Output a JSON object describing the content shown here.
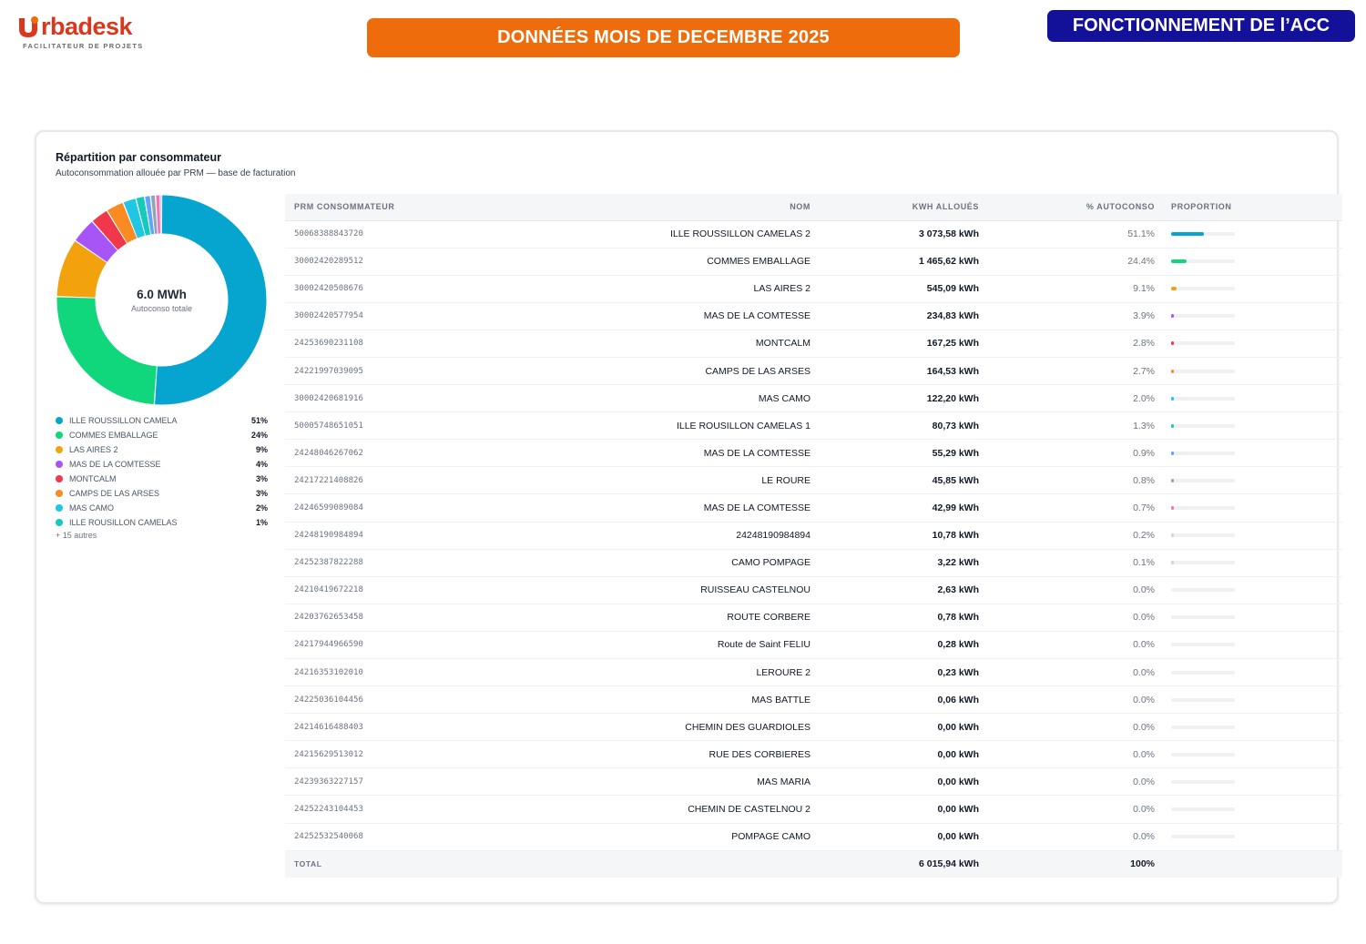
{
  "brand": {
    "name": "rbadesk",
    "tagline": "FACILITATEUR DE PROJETS",
    "color": "#d9381e"
  },
  "banner_center": {
    "text": "DONNÉES MOIS DE DECEMBRE 2025",
    "color": "#ee6c0b"
  },
  "banner_right": {
    "text": "FONCTIONNEMENT DE l’ACC",
    "color": "#13109a"
  },
  "card": {
    "title": "Répartition par consommateur",
    "subtitle": "Autoconsommation allouée par PRM — base de facturation"
  },
  "donut": {
    "center_value": "6.0 MWh",
    "center_label": "Autoconso totale"
  },
  "legend": {
    "items": [
      {
        "name": "ILLE ROUSSILLON CAMELA",
        "pct": "51%",
        "color": "#06a5cf"
      },
      {
        "name": "COMMES EMBALLAGE",
        "pct": "24%",
        "color": "#10d77c"
      },
      {
        "name": "LAS AIRES 2",
        "pct": "9%",
        "color": "#f2a20c"
      },
      {
        "name": "MAS DE LA COMTESSE",
        "pct": "4%",
        "color": "#a855f7"
      },
      {
        "name": "MONTCALM",
        "pct": "3%",
        "color": "#f0374c"
      },
      {
        "name": "CAMPS DE LAS ARSES",
        "pct": "3%",
        "color": "#f98b22"
      },
      {
        "name": "MAS CAMO",
        "pct": "2%",
        "color": "#21c6e5"
      },
      {
        "name": "ILLE ROUSILLON CAMELAS",
        "pct": "1%",
        "color": "#16c9bd"
      }
    ],
    "more": "+ 15 autres"
  },
  "table": {
    "headers": {
      "prm": "PRM CONSOMMATEUR",
      "nom": "NOM",
      "kwh": "KWH ALLOUÉS",
      "pct": "% AUTOCONSO",
      "prop": "PROPORTION"
    },
    "rows": [
      {
        "prm": "50068388843720",
        "nom": "ILLE ROUSSILLON CAMELAS 2",
        "kwh": "3 073,58 kWh",
        "pct": "51.1%",
        "share": 51.1,
        "color": "#06a5cf"
      },
      {
        "prm": "30002420289512",
        "nom": "COMMES EMBALLAGE",
        "kwh": "1 465,62 kWh",
        "pct": "24.4%",
        "share": 24.4,
        "color": "#10d77c"
      },
      {
        "prm": "30002420508676",
        "nom": "LAS AIRES 2",
        "kwh": "545,09 kWh",
        "pct": "9.1%",
        "share": 9.1,
        "color": "#f2a20c"
      },
      {
        "prm": "30002420577954",
        "nom": "MAS DE LA COMTESSE",
        "kwh": "234,83 kWh",
        "pct": "3.9%",
        "share": 3.9,
        "color": "#a855f7"
      },
      {
        "prm": "24253690231108",
        "nom": "MONTCALM",
        "kwh": "167,25 kWh",
        "pct": "2.8%",
        "share": 2.8,
        "color": "#f0374c"
      },
      {
        "prm": "24221997039095",
        "nom": "CAMPS DE LAS ARSES",
        "kwh": "164,53 kWh",
        "pct": "2.7%",
        "share": 2.7,
        "color": "#f98b22"
      },
      {
        "prm": "30002420681916",
        "nom": "MAS CAMO",
        "kwh": "122,20 kWh",
        "pct": "2.0%",
        "share": 2.0,
        "color": "#21c6e5"
      },
      {
        "prm": "50005748651051",
        "nom": "ILLE ROUSILLON CAMELAS 1",
        "kwh": "80,73 kWh",
        "pct": "1.3%",
        "share": 1.3,
        "color": "#16c9bd"
      },
      {
        "prm": "24248046267062",
        "nom": "MAS DE LA COMTESSE",
        "kwh": "55,29 kWh",
        "pct": "0.9%",
        "share": 0.9,
        "color": "#60a5fa"
      },
      {
        "prm": "24217221408826",
        "nom": "LE ROURE",
        "kwh": "45,85 kWh",
        "pct": "0.8%",
        "share": 0.8,
        "color": "#94a3b8"
      },
      {
        "prm": "24246599089084",
        "nom": "MAS DE LA COMTESSE",
        "kwh": "42,99 kWh",
        "pct": "0.7%",
        "share": 0.7,
        "color": "#f472b6"
      },
      {
        "prm": "24248190984894",
        "nom": "24248190984894",
        "kwh": "10,78 kWh",
        "pct": "0.2%",
        "share": 0.2,
        "color": "#cbd5e1"
      },
      {
        "prm": "24252387822288",
        "nom": "CAMO POMPAGE",
        "kwh": "3,22 kWh",
        "pct": "0.1%",
        "share": 0.1,
        "color": "#cbd5e1"
      },
      {
        "prm": "24210419672218",
        "nom": "RUISSEAU CASTELNOU",
        "kwh": "2,63 kWh",
        "pct": "0.0%",
        "share": 0,
        "color": "#cbd5e1"
      },
      {
        "prm": "24203762653458",
        "nom": "ROUTE CORBERE",
        "kwh": "0,78 kWh",
        "pct": "0.0%",
        "share": 0,
        "color": "#cbd5e1"
      },
      {
        "prm": "24217944966590",
        "nom": "Route de Saint FELIU",
        "kwh": "0,28 kWh",
        "pct": "0.0%",
        "share": 0,
        "color": "#cbd5e1"
      },
      {
        "prm": "24216353102010",
        "nom": "LEROURE 2",
        "kwh": "0,23 kWh",
        "pct": "0.0%",
        "share": 0,
        "color": "#cbd5e1"
      },
      {
        "prm": "24225036104456",
        "nom": "MAS BATTLE",
        "kwh": "0,06 kWh",
        "pct": "0.0%",
        "share": 0,
        "color": "#cbd5e1"
      },
      {
        "prm": "24214616488403",
        "nom": "CHEMIN DES GUARDIOLES",
        "kwh": "0,00 kWh",
        "pct": "0.0%",
        "share": 0,
        "color": "#cbd5e1"
      },
      {
        "prm": "24215629513012",
        "nom": "RUE DES CORBIERES",
        "kwh": "0,00 kWh",
        "pct": "0.0%",
        "share": 0,
        "color": "#cbd5e1"
      },
      {
        "prm": "24239363227157",
        "nom": "MAS MARIA",
        "kwh": "0,00 kWh",
        "pct": "0.0%",
        "share": 0,
        "color": "#cbd5e1"
      },
      {
        "prm": "24252243104453",
        "nom": "CHEMIN DE CASTELNOU 2",
        "kwh": "0,00 kWh",
        "pct": "0.0%",
        "share": 0,
        "color": "#cbd5e1"
      },
      {
        "prm": "24252532540068",
        "nom": "POMPAGE CAMO",
        "kwh": "0,00 kWh",
        "pct": "0.0%",
        "share": 0,
        "color": "#cbd5e1"
      }
    ],
    "total": {
      "label": "TOTAL",
      "kwh": "6 015,94 kWh",
      "pct": "100%"
    }
  },
  "chart_data": {
    "type": "pie",
    "categories": [
      "ILLE ROUSSILLON CAMELAS 2",
      "COMMES EMBALLAGE",
      "LAS AIRES 2",
      "MAS DE LA COMTESSE",
      "MONTCALM",
      "CAMPS DE LAS ARSES",
      "MAS CAMO",
      "ILLE ROUSILLON CAMELAS 1",
      "MAS DE LA COMTESSE",
      "LE ROURE",
      "MAS DE LA COMTESSE",
      "24248190984894",
      "CAMO POMPAGE"
    ],
    "values": [
      3073.58,
      1465.62,
      545.09,
      234.83,
      167.25,
      164.53,
      122.2,
      80.73,
      55.29,
      45.85,
      42.99,
      10.78,
      3.22
    ],
    "colors": [
      "#06a5cf",
      "#10d77c",
      "#f2a20c",
      "#a855f7",
      "#f0374c",
      "#f98b22",
      "#21c6e5",
      "#16c9bd",
      "#60a5fa",
      "#94a3b8",
      "#f472b6",
      "#cbd5e1",
      "#cbd5e1"
    ]
  }
}
